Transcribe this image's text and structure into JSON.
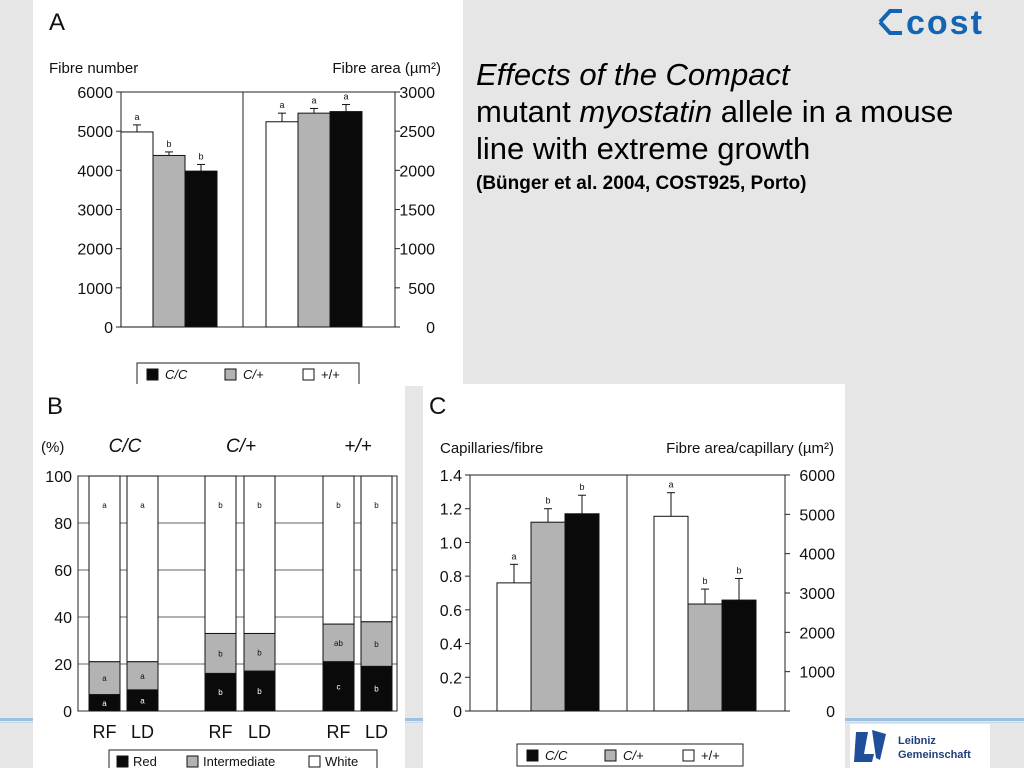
{
  "slide": {
    "title_em1": "Effects of the Compact",
    "title_plain1": "mutant",
    "title_em2": "myostatin",
    "title_plain2": "allele in a mouse line with extreme growth",
    "reference": "(Bünger et al. 2004, COST925, Porto)",
    "logo_text": "cost",
    "leibniz_line1": "Leibniz",
    "leibniz_line2": "Gemeinschaft",
    "colors": {
      "black": "#0a0a0a",
      "gray": "#b3b3b3",
      "white": "#ffffff",
      "logo_blue": "#1464b4"
    }
  },
  "chart_data": [
    {
      "panel": "A",
      "type": "bar",
      "left_axis_label": "Fibre number",
      "right_axis_label": "Fibre area (µm²)",
      "left_ylim": [
        0,
        6000
      ],
      "left_ticks": [
        "6000",
        "5000",
        "4000",
        "3000",
        "2000",
        "1000",
        "0"
      ],
      "right_ylim": [
        0,
        3000
      ],
      "right_ticks": [
        "3000",
        "2500",
        "2000",
        "1500",
        "1000",
        "500",
        "0"
      ],
      "groups": [
        {
          "axis": "left",
          "bars": [
            {
              "genotype": "+/+",
              "value": 4980,
              "err": 180,
              "label": "a"
            },
            {
              "genotype": "C/+",
              "value": 4380,
              "err": 90,
              "label": "b"
            },
            {
              "genotype": "C/C",
              "value": 3980,
              "err": 170,
              "label": "b"
            }
          ]
        },
        {
          "axis": "right",
          "bars": [
            {
              "genotype": "+/+",
              "value": 2620,
              "err": 110,
              "label": "a"
            },
            {
              "genotype": "C/+",
              "value": 2730,
              "err": 60,
              "label": "a"
            },
            {
              "genotype": "C/C",
              "value": 2750,
              "err": 90,
              "label": "a"
            }
          ]
        }
      ],
      "legend": [
        "C/C",
        "C/+",
        "+/+"
      ]
    },
    {
      "panel": "B",
      "type": "bar",
      "stacked": true,
      "unit_label": "(%)",
      "ylim": [
        0,
        100
      ],
      "ticks": [
        "100",
        "80",
        "60",
        "40",
        "20",
        "0"
      ],
      "genotypes": [
        "C/C",
        "C/+",
        "+/+"
      ],
      "categories": [
        "RF",
        "LD",
        "RF",
        "LD",
        "RF",
        "LD"
      ],
      "bars": [
        {
          "genotype": "C/C",
          "muscle": "RF",
          "red": 7,
          "intermediate": 14,
          "labels": [
            "a",
            "a",
            "a"
          ]
        },
        {
          "genotype": "C/C",
          "muscle": "LD",
          "red": 9,
          "intermediate": 12,
          "labels": [
            "a",
            "a",
            "a"
          ]
        },
        {
          "genotype": "C/+",
          "muscle": "RF",
          "red": 16,
          "intermediate": 17,
          "labels": [
            "b",
            "b",
            "b"
          ]
        },
        {
          "genotype": "C/+",
          "muscle": "LD",
          "red": 17,
          "intermediate": 16,
          "labels": [
            "b",
            "b",
            "b"
          ]
        },
        {
          "genotype": "+/+",
          "muscle": "RF",
          "red": 21,
          "intermediate": 16,
          "labels": [
            "c",
            "ab",
            "b"
          ]
        },
        {
          "genotype": "+/+",
          "muscle": "LD",
          "red": 19,
          "intermediate": 19,
          "labels": [
            "b",
            "b",
            "b"
          ]
        }
      ],
      "legend": [
        "Red",
        "Intermediate",
        "White"
      ]
    },
    {
      "panel": "C",
      "type": "bar",
      "left_axis_label": "Capillaries/fibre",
      "right_axis_label": "Fibre area/capillary (µm²)",
      "left_ylim": [
        0,
        1.4
      ],
      "left_ticks": [
        "1.4",
        "1.2",
        "1.0",
        "0.8",
        "0.6",
        "0.4",
        "0.2",
        "0"
      ],
      "right_ylim": [
        0,
        6000
      ],
      "right_ticks": [
        "6000",
        "5000",
        "4000",
        "3000",
        "2000",
        "1000",
        "0"
      ],
      "groups": [
        {
          "axis": "left",
          "bars": [
            {
              "genotype": "+/+",
              "value": 0.76,
              "err": 0.11,
              "label": "a"
            },
            {
              "genotype": "C/+",
              "value": 1.12,
              "err": 0.08,
              "label": "b"
            },
            {
              "genotype": "C/C",
              "value": 1.17,
              "err": 0.11,
              "label": "b"
            }
          ]
        },
        {
          "axis": "right",
          "bars": [
            {
              "genotype": "+/+",
              "value": 4950,
              "err": 600,
              "label": "a"
            },
            {
              "genotype": "C/+",
              "value": 2720,
              "err": 380,
              "label": "b"
            },
            {
              "genotype": "C/C",
              "value": 2820,
              "err": 550,
              "label": "b"
            }
          ]
        }
      ],
      "legend": [
        "C/C",
        "C/+",
        "+/+"
      ]
    }
  ]
}
